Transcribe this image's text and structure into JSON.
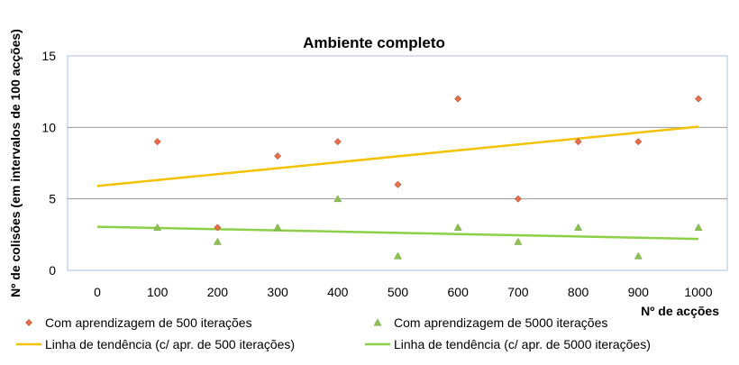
{
  "chart_data": {
    "type": "scatter",
    "title": "Ambiente completo",
    "xlabel": "Nº de acções",
    "ylabel": "Nº de colisões (em intervalos de 100 acções)",
    "xlim": [
      0,
      1000
    ],
    "ylim": [
      0,
      15
    ],
    "x_ticks": [
      "0",
      "100",
      "200",
      "300",
      "400",
      "500",
      "600",
      "700",
      "800",
      "900",
      "1000"
    ],
    "y_ticks": [
      "0",
      "5",
      "10",
      "15"
    ],
    "grid": true,
    "legend_position": "bottom",
    "series": [
      {
        "name": "Com aprendizagem de 500 iterações",
        "marker": "diamond",
        "color": "#e8704a",
        "x": [
          100,
          200,
          300,
          400,
          500,
          600,
          700,
          800,
          900,
          1000
        ],
        "y": [
          9,
          3,
          8,
          9,
          6,
          12,
          5,
          9,
          9,
          12
        ]
      },
      {
        "name": "Com aprendizagem de 5000 iterações",
        "marker": "triangle",
        "color": "#8cc152",
        "x": [
          100,
          200,
          300,
          400,
          500,
          600,
          700,
          800,
          900,
          1000
        ],
        "y": [
          3,
          2,
          3,
          5,
          1,
          3,
          2,
          3,
          1,
          3
        ]
      }
    ],
    "trendlines": [
      {
        "name": "Linha de tendência (c/ apr. de 500 iterações)",
        "color": "#f4c200",
        "x": [
          0,
          1000
        ],
        "y": [
          5.9,
          10.05
        ]
      },
      {
        "name": "Linha de tendência (c/ apr. de 5000 iterações)",
        "color": "#8cd048",
        "x": [
          0,
          1000
        ],
        "y": [
          3.05,
          2.2
        ]
      }
    ]
  }
}
